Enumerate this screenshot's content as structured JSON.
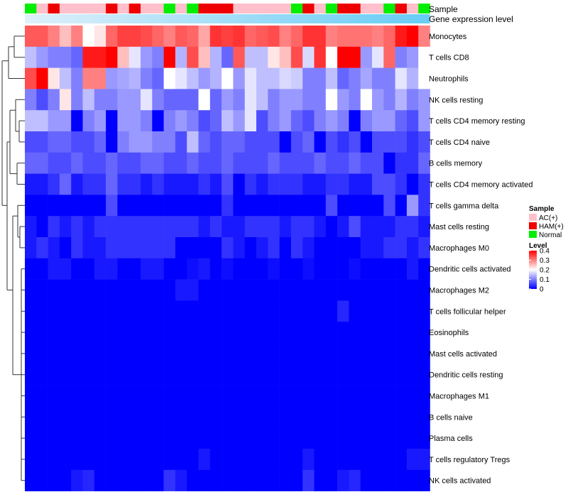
{
  "chart_data": {
    "type": "heatmap",
    "annotation_labels": [
      "Sample",
      "Gene expression level"
    ],
    "rows": [
      "Monocytes",
      "T cells CD8",
      "Neutrophils",
      "NK cells resting",
      "T cells CD4 memory resting",
      "T cells CD4 naive",
      "B cells memory",
      "T cells CD4 memory activated",
      "T cells gamma delta",
      "Mast cells resting",
      "Macrophages M0",
      "Dendritic cells activated",
      "Macrophages M2",
      "T cells follicular helper",
      "Eosinophils",
      "Mast cells activated",
      "Dendritic cells resting",
      "Macrophages M1",
      "B cells naive",
      "Plasma cells",
      "T cells regulatory  Tregs",
      "NK cells activated"
    ],
    "sample_groups": [
      "Normal",
      "AC(+)",
      "HAM(+)",
      "AC(+)",
      "AC(+)",
      "AC(+)",
      "AC(+)",
      "HAM(+)",
      "AC(+)",
      "HAM(+)",
      "AC(+)",
      "AC(+)",
      "Normal",
      "AC(+)",
      "Normal",
      "HAM(+)",
      "HAM(+)",
      "HAM(+)",
      "AC(+)",
      "AC(+)",
      "AC(+)",
      "AC(+)",
      "AC(+)",
      "Normal",
      "HAM(+)",
      "AC(+)",
      "Normal",
      "HAM(+)",
      "HAM(+)",
      "AC(+)",
      "AC(+)",
      "Normal",
      "HAM(+)",
      "AC(+)",
      "Normal"
    ],
    "values": [
      [
        0.33,
        0.33,
        0.3,
        0.25,
        0.3,
        0.2,
        0.22,
        0.32,
        0.35,
        0.35,
        0.34,
        0.32,
        0.3,
        0.33,
        0.32,
        0.27,
        0.36,
        0.35,
        0.36,
        0.32,
        0.33,
        0.34,
        0.3,
        0.32,
        0.36,
        0.36,
        0.3,
        0.31,
        0.31,
        0.31,
        0.3,
        0.32,
        0.38,
        0.4,
        0.3
      ],
      [
        0.15,
        0.12,
        0.1,
        0.1,
        0.08,
        0.38,
        0.38,
        0.4,
        0.25,
        0.18,
        0.12,
        0.1,
        0.4,
        0.14,
        0.34,
        0.25,
        0.14,
        0.08,
        0.33,
        0.15,
        0.15,
        0.22,
        0.25,
        0.34,
        0.17,
        0.36,
        0.2,
        0.4,
        0.4,
        0.12,
        0.18,
        0.32,
        0.1,
        0.12,
        0.2
      ],
      [
        0.34,
        0.4,
        0.22,
        0.15,
        0.1,
        0.3,
        0.3,
        0.12,
        0.13,
        0.14,
        0.1,
        0.08,
        0.2,
        0.18,
        0.15,
        0.12,
        0.14,
        0.2,
        0.12,
        0.18,
        0.15,
        0.15,
        0.17,
        0.16,
        0.1,
        0.1,
        0.15,
        0.08,
        0.1,
        0.13,
        0.1,
        0.1,
        0.18,
        0.14,
        0.2
      ],
      [
        0.1,
        0.06,
        0.1,
        0.22,
        0.1,
        0.15,
        0.1,
        0.1,
        0.12,
        0.12,
        0.18,
        0.1,
        0.08,
        0.08,
        0.08,
        0.2,
        0.08,
        0.12,
        0.1,
        0.18,
        0.15,
        0.1,
        0.12,
        0.12,
        0.1,
        0.1,
        0.2,
        0.12,
        0.1,
        0.2,
        0.12,
        0.1,
        0.14,
        0.1,
        0.12
      ],
      [
        0.15,
        0.15,
        0.12,
        0.12,
        0.0,
        0.1,
        0.12,
        0.0,
        0.12,
        0.12,
        0.1,
        0.0,
        0.1,
        0.12,
        0.1,
        0.06,
        0.08,
        0.15,
        0.12,
        0.18,
        0.06,
        0.1,
        0.12,
        0.08,
        0.06,
        0.1,
        0.12,
        0.1,
        0.0,
        0.1,
        0.12,
        0.12,
        0.08,
        0.06,
        0.12
      ],
      [
        0.06,
        0.06,
        0.08,
        0.08,
        0.06,
        0.06,
        0.08,
        0.0,
        0.1,
        0.12,
        0.12,
        0.1,
        0.1,
        0.06,
        0.15,
        0.08,
        0.06,
        0.08,
        0.08,
        0.06,
        0.06,
        0.06,
        0.0,
        0.06,
        0.08,
        0.0,
        0.06,
        0.04,
        0.06,
        0.0,
        0.06,
        0.06,
        0.06,
        0.04,
        0.06
      ],
      [
        0.08,
        0.08,
        0.06,
        0.06,
        0.08,
        0.06,
        0.06,
        0.08,
        0.06,
        0.06,
        0.08,
        0.08,
        0.06,
        0.06,
        0.08,
        0.06,
        0.06,
        0.08,
        0.06,
        0.06,
        0.06,
        0.08,
        0.06,
        0.06,
        0.06,
        0.08,
        0.06,
        0.06,
        0.08,
        0.06,
        0.06,
        0.0,
        0.04,
        0.04,
        0.08
      ],
      [
        0.02,
        0.02,
        0.04,
        0.08,
        0.02,
        0.04,
        0.04,
        0.08,
        0.04,
        0.04,
        0.02,
        0.04,
        0.02,
        0.02,
        0.02,
        0.04,
        0.02,
        0.06,
        0.0,
        0.04,
        0.02,
        0.04,
        0.04,
        0.04,
        0.02,
        0.02,
        0.04,
        0.04,
        0.02,
        0.02,
        0.06,
        0.06,
        0.04,
        0.0,
        0.04
      ],
      [
        0.0,
        0.0,
        0.0,
        0.0,
        0.0,
        0.0,
        0.0,
        0.06,
        0.0,
        0.0,
        0.0,
        0.0,
        0.0,
        0.0,
        0.0,
        0.0,
        0.0,
        0.04,
        0.0,
        0.0,
        0.0,
        0.0,
        0.0,
        0.0,
        0.0,
        0.0,
        0.06,
        0.0,
        0.0,
        0.0,
        0.0,
        0.06,
        0.0,
        0.12,
        0.04
      ],
      [
        0.02,
        0.0,
        0.04,
        0.02,
        0.04,
        0.02,
        0.04,
        0.04,
        0.04,
        0.04,
        0.04,
        0.04,
        0.04,
        0.04,
        0.04,
        0.02,
        0.04,
        0.02,
        0.02,
        0.04,
        0.04,
        0.04,
        0.02,
        0.04,
        0.04,
        0.02,
        0.0,
        0.02,
        0.06,
        0.02,
        0.02,
        0.02,
        0.04,
        0.04,
        0.02
      ],
      [
        0.02,
        0.04,
        0.02,
        0.0,
        0.04,
        0.02,
        0.02,
        0.04,
        0.04,
        0.04,
        0.04,
        0.04,
        0.04,
        0.0,
        0.0,
        0.0,
        0.0,
        0.04,
        0.02,
        0.0,
        0.02,
        0.04,
        0.0,
        0.04,
        0.02,
        0.0,
        0.0,
        0.0,
        0.0,
        0.02,
        0.02,
        0.04,
        0.04,
        0.02,
        0.04
      ],
      [
        0.0,
        0.0,
        0.02,
        0.02,
        0.0,
        0.0,
        0.02,
        0.02,
        0.0,
        0.0,
        0.02,
        0.02,
        0.0,
        0.0,
        0.01,
        0.02,
        0.0,
        0.01,
        0.0,
        0.0,
        0.0,
        0.01,
        0.0,
        0.0,
        0.01,
        0.0,
        0.0,
        0.0,
        0.01,
        0.0,
        0.0,
        0.0,
        0.0,
        0.02,
        0.0
      ],
      [
        0.0,
        0.0,
        0.0,
        0.0,
        0.0,
        0.0,
        0.0,
        0.0,
        0.0,
        0.0,
        0.0,
        0.0,
        0.0,
        0.02,
        0.02,
        0.0,
        0.0,
        0.0,
        0.0,
        0.0,
        0.0,
        0.0,
        0.0,
        0.0,
        0.0,
        0.0,
        0.0,
        0.0,
        0.0,
        0.0,
        0.0,
        0.0,
        0.0,
        0.0,
        0.0
      ],
      [
        0.0,
        0.0,
        0.0,
        0.0,
        0.0,
        0.0,
        0.0,
        0.0,
        0.0,
        0.0,
        0.0,
        0.0,
        0.0,
        0.0,
        0.0,
        0.0,
        0.0,
        0.0,
        0.0,
        0.0,
        0.0,
        0.0,
        0.0,
        0.0,
        0.0,
        0.0,
        0.0,
        0.03,
        0.0,
        0.0,
        0.0,
        0.0,
        0.0,
        0.0,
        0.0
      ],
      [
        0.0,
        0.0,
        0.0,
        0.0,
        0.0,
        0.0,
        0.0,
        0.0,
        0.0,
        0.0,
        0.0,
        0.0,
        0.0,
        0.0,
        0.0,
        0.0,
        0.0,
        0.0,
        0.0,
        0.0,
        0.0,
        0.0,
        0.0,
        0.0,
        0.0,
        0.0,
        0.0,
        0.0,
        0.0,
        0.0,
        0.0,
        0.0,
        0.0,
        0.0,
        0.0
      ],
      [
        0.0,
        0.0,
        0.0,
        0.0,
        0.0,
        0.0,
        0.0,
        0.0,
        0.0,
        0.0,
        0.0,
        0.0,
        0.0,
        0.0,
        0.0,
        0.0,
        0.0,
        0.0,
        0.0,
        0.0,
        0.0,
        0.0,
        0.0,
        0.0,
        0.0,
        0.0,
        0.0,
        0.0,
        0.0,
        0.0,
        0.0,
        0.0,
        0.0,
        0.0,
        0.0
      ],
      [
        0.0,
        0.0,
        0.0,
        0.0,
        0.0,
        0.0,
        0.0,
        0.0,
        0.0,
        0.0,
        0.0,
        0.0,
        0.0,
        0.0,
        0.0,
        0.0,
        0.0,
        0.0,
        0.0,
        0.0,
        0.0,
        0.0,
        0.0,
        0.0,
        0.0,
        0.0,
        0.0,
        0.0,
        0.0,
        0.0,
        0.0,
        0.0,
        0.0,
        0.0,
        0.0
      ],
      [
        0.0,
        0.0,
        0.0,
        0.0,
        0.0,
        0.0,
        0.0,
        0.0,
        0.0,
        0.0,
        0.0,
        0.0,
        0.0,
        0.0,
        0.0,
        0.0,
        0.0,
        0.0,
        0.0,
        0.0,
        0.0,
        0.0,
        0.0,
        0.0,
        0.0,
        0.0,
        0.0,
        0.0,
        0.0,
        0.0,
        0.0,
        0.0,
        0.0,
        0.0,
        0.0
      ],
      [
        0.0,
        0.0,
        0.0,
        0.0,
        0.0,
        0.0,
        0.0,
        0.0,
        0.0,
        0.0,
        0.0,
        0.0,
        0.0,
        0.0,
        0.0,
        0.0,
        0.0,
        0.0,
        0.0,
        0.0,
        0.0,
        0.0,
        0.0,
        0.0,
        0.0,
        0.0,
        0.0,
        0.0,
        0.0,
        0.0,
        0.0,
        0.0,
        0.0,
        0.0,
        0.0
      ],
      [
        0.0,
        0.0,
        0.0,
        0.0,
        0.0,
        0.0,
        0.0,
        0.0,
        0.0,
        0.0,
        0.0,
        0.0,
        0.0,
        0.0,
        0.0,
        0.0,
        0.0,
        0.0,
        0.0,
        0.0,
        0.0,
        0.0,
        0.0,
        0.0,
        0.0,
        0.0,
        0.0,
        0.0,
        0.0,
        0.0,
        0.0,
        0.0,
        0.0,
        0.0,
        0.0
      ],
      [
        0.0,
        0.0,
        0.0,
        0.0,
        0.0,
        0.0,
        0.0,
        0.0,
        0.0,
        0.0,
        0.0,
        0.0,
        0.0,
        0.0,
        0.0,
        0.02,
        0.0,
        0.0,
        0.0,
        0.0,
        0.0,
        0.0,
        0.0,
        0.0,
        0.02,
        0.0,
        0.0,
        0.0,
        0.0,
        0.0,
        0.0,
        0.0,
        0.0,
        0.02,
        0.02
      ],
      [
        0.0,
        0.0,
        0.0,
        0.0,
        0.02,
        0.03,
        0.0,
        0.0,
        0.0,
        0.0,
        0.0,
        0.0,
        0.04,
        0.02,
        0.0,
        0.0,
        0.0,
        0.0,
        0.0,
        0.0,
        0.0,
        0.0,
        0.0,
        0.0,
        0.04,
        0.0,
        0.0,
        0.02,
        0.03,
        0.0,
        0.0,
        0.0,
        0.0,
        0.0,
        0.0
      ]
    ],
    "color_scale": {
      "min": 0,
      "max": 0.4,
      "colors": [
        "#0000ff",
        "#ffffff",
        "#ff0000"
      ]
    },
    "legends": {
      "sample": {
        "title": "Sample",
        "entries": [
          {
            "label": "AC(+)",
            "color": "#ffc0cb"
          },
          {
            "label": "HAM(+)",
            "color": "#ee0000"
          },
          {
            "label": "Normal",
            "color": "#00ee00"
          }
        ]
      },
      "level": {
        "title": "Level",
        "ticks": [
          0.4,
          0.3,
          0.2,
          0.1,
          0
        ],
        "tick_labels": [
          "0.4",
          "0.3",
          "0.2",
          "0.1",
          "0"
        ]
      }
    },
    "gene_expression_color": "#66ccf5",
    "gene_expression_light_color": "#dff0fa"
  }
}
